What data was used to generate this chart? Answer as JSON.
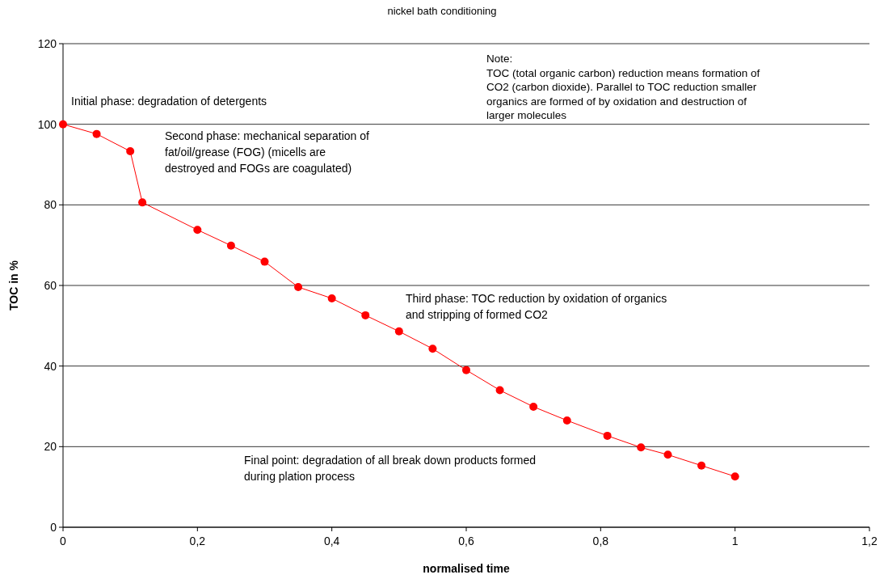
{
  "chart_data": {
    "type": "line",
    "title": "nickel bath conditioning",
    "xlabel": "normalised time",
    "ylabel": "TOC in %",
    "x": [
      0,
      0.05,
      0.1,
      0.118,
      0.2,
      0.25,
      0.3,
      0.35,
      0.4,
      0.45,
      0.5,
      0.55,
      0.6,
      0.65,
      0.7,
      0.75,
      0.81,
      0.86,
      0.9,
      0.95,
      1
    ],
    "series": [
      {
        "color": "#ff0000",
        "values": [
          100,
          97.6,
          93.3,
          80.6,
          73.8,
          69.9,
          65.9,
          59.6,
          56.8,
          52.6,
          48.6,
          44.3,
          39,
          34,
          29.9,
          26.5,
          22.7,
          19.8,
          18,
          15.3,
          12.6
        ]
      }
    ],
    "xlim": [
      0,
      1.2
    ],
    "xticks": [
      {
        "value": 0,
        "label": "0"
      },
      {
        "value": 0.2,
        "label": "0,2"
      },
      {
        "value": 0.4,
        "label": "0,4"
      },
      {
        "value": 0.6,
        "label": "0,6"
      },
      {
        "value": 0.8,
        "label": "0,8"
      },
      {
        "value": 1,
        "label": "1"
      },
      {
        "value": 1.2,
        "label": "1,2"
      }
    ],
    "ylim": [
      0,
      120
    ],
    "yticks": [
      0,
      20,
      40,
      60,
      80,
      100,
      120
    ],
    "grid": "y",
    "marker": "circle",
    "line_style": "solid",
    "annotations": [
      "Initial phase: degradation of detergents",
      "Second phase: mechanical separation of\nfat/oil/grease (FOG) (micells are\ndestroyed and FOGs are coagulated)",
      "Third phase: TOC reduction by oxidation of organics\nand stripping of formed CO2",
      "Final point: degradation of all break down products formed\nduring plation process",
      "Note:\nTOC (total organic carbon) reduction means formation of\nCO2 (carbon dioxide). Parallel to TOC reduction smaller\norganics are formed of  by oxidation and destruction of\nlarger molecules"
    ]
  }
}
